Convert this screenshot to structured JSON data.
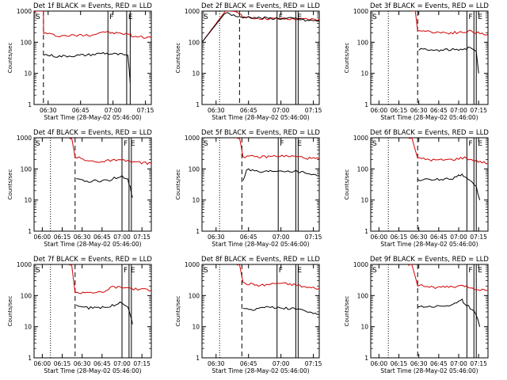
{
  "chart_data": [
    {
      "type": "line",
      "title": "Det 1f BLACK = Events, RED = LLD",
      "xlabel": "Start Time (28-May-02 05:46:00)",
      "ylabel": "Counts/sec",
      "xtick_labels": [
        "06:30",
        "06:45",
        "07:00",
        "07:15"
      ],
      "series": [
        {
          "color": "#d00000",
          "x": [
            0,
            0.045,
            0.08,
            0.081,
            0.2,
            0.35,
            0.5,
            0.59,
            0.65,
            0.75,
            0.82,
            0.83,
            0.9,
            1
          ],
          "y": [
            1000,
            1000,
            1000,
            200,
            160,
            165,
            175,
            220,
            200,
            190,
            180,
            160,
            150,
            140
          ]
        },
        {
          "color": "#000000",
          "x": [
            0.085,
            0.2,
            0.35,
            0.5,
            0.59,
            0.65,
            0.75,
            0.8,
            0.81,
            0.82
          ],
          "y": [
            40,
            35,
            37,
            40,
            45,
            42,
            40,
            35,
            15,
            5
          ]
        }
      ],
      "markers": [
        {
          "x": 0.08,
          "style": "dashed",
          "label": ""
        },
        {
          "x": -0.18,
          "style": "dotted",
          "label": ""
        },
        {
          "x": 0.63,
          "style": "solid",
          "label": "F"
        },
        {
          "x": 0.79,
          "style": "solid",
          "label": "E"
        },
        {
          "x": 0.82,
          "style": "solid",
          "label": ""
        }
      ]
    },
    {
      "type": "line",
      "title": "Det 2f BLACK = Events, RED = LLD",
      "xlabel": "Start Time (28-May-02 05:46:00)",
      "ylabel": "Counts/sec",
      "xtick_labels": [
        "06:30",
        "06:45",
        "07:00",
        "07:15"
      ],
      "series": [
        {
          "color": "#d00000",
          "x": [
            0,
            0.2,
            0.3,
            0.35,
            0.4,
            0.5,
            0.65,
            0.8,
            1
          ],
          "y": [
            100,
            1000,
            1000,
            650,
            600,
            580,
            560,
            550,
            540
          ]
        },
        {
          "color": "#000000",
          "x": [
            0,
            0.2,
            0.34,
            0.36,
            0.5,
            0.65,
            0.8,
            0.88,
            1
          ],
          "y": [
            100,
            900,
            600,
            650,
            600,
            580,
            570,
            500,
            480
          ]
        }
      ],
      "markers": [
        {
          "x": 0.32,
          "style": "dashed",
          "label": ""
        },
        {
          "x": 0.15,
          "style": "dotted",
          "label": ""
        },
        {
          "x": 0.64,
          "style": "solid",
          "label": "F"
        },
        {
          "x": 0.8,
          "style": "solid",
          "label": "E"
        },
        {
          "x": 0.82,
          "style": "solid",
          "label": ""
        }
      ]
    },
    {
      "type": "line",
      "title": "Det 3f BLACK = Events, RED = LLD",
      "xlabel": "Start Time (28-May-02 05:46:00)",
      "ylabel": "Counts/sec",
      "xtick_labels": [
        "06:00",
        "06:15",
        "06:30",
        "06:45",
        "07:00",
        "07:15"
      ],
      "series": [
        {
          "color": "#d00000",
          "x": [
            0.35,
            0.38,
            0.4,
            0.5,
            0.65,
            0.8,
            0.84,
            0.9,
            1
          ],
          "y": [
            1000,
            1000,
            250,
            220,
            200,
            210,
            230,
            200,
            180
          ]
        },
        {
          "color": "#000000",
          "x": [
            0.41,
            0.5,
            0.6,
            0.7,
            0.8,
            0.85,
            0.9,
            0.92
          ],
          "y": [
            60,
            55,
            55,
            58,
            60,
            70,
            50,
            10
          ]
        }
      ],
      "markers": [
        {
          "x": 0.4,
          "style": "dashed",
          "label": ""
        },
        {
          "x": 0.15,
          "style": "dotted",
          "label": ""
        },
        {
          "x": 0.82,
          "style": "solid",
          "label": "F"
        },
        {
          "x": 0.88,
          "style": "solid",
          "label": ""
        },
        {
          "x": 0.9,
          "style": "solid",
          "label": "E"
        }
      ]
    },
    {
      "type": "line",
      "title": "Det 4f BLACK = Events, RED = LLD",
      "xlabel": "Start Time (28-May-02 05:46:00)",
      "ylabel": "Counts/sec",
      "xtick_labels": [
        "06:00",
        "06:15",
        "06:30",
        "06:45",
        "07:00",
        "07:15"
      ],
      "series": [
        {
          "color": "#d00000",
          "x": [
            0.3,
            0.32,
            0.35,
            0.45,
            0.6,
            0.65,
            0.8,
            0.85,
            0.9,
            1
          ],
          "y": [
            1000,
            1000,
            250,
            180,
            170,
            190,
            180,
            165,
            160,
            150
          ]
        },
        {
          "color": "#000000",
          "x": [
            0.36,
            0.45,
            0.6,
            0.65,
            0.75,
            0.8,
            0.82,
            0.84
          ],
          "y": [
            45,
            40,
            42,
            45,
            60,
            45,
            25,
            12
          ]
        }
      ],
      "markers": [
        {
          "x": 0.35,
          "style": "dashed",
          "label": ""
        },
        {
          "x": 0.14,
          "style": "dotted",
          "label": ""
        },
        {
          "x": 0.75,
          "style": "solid",
          "label": "F"
        },
        {
          "x": 0.81,
          "style": "solid",
          "label": "E"
        },
        {
          "x": 0.83,
          "style": "solid",
          "label": ""
        }
      ]
    },
    {
      "type": "line",
      "title": "Det 5f BLACK = Events, RED = LLD",
      "xlabel": "Start Time (28-May-02 05:46:00)",
      "ylabel": "Counts/sec",
      "xtick_labels": [
        "06:30",
        "06:45",
        "07:00",
        "07:15"
      ],
      "series": [
        {
          "color": "#d00000",
          "x": [
            0.3,
            0.32,
            0.35,
            0.5,
            0.65,
            0.8,
            0.9,
            1
          ],
          "y": [
            1000,
            1000,
            250,
            240,
            260,
            250,
            220,
            210
          ]
        },
        {
          "color": "#000000",
          "x": [
            0.35,
            0.38,
            0.5,
            0.65,
            0.8,
            0.9,
            1
          ],
          "y": [
            40,
            100,
            80,
            90,
            85,
            75,
            60
          ]
        }
      ],
      "markers": [
        {
          "x": 0.34,
          "style": "dashed",
          "label": ""
        },
        {
          "x": 0.15,
          "style": "dotted",
          "label": ""
        },
        {
          "x": 0.65,
          "style": "solid",
          "label": "F"
        },
        {
          "x": 0.8,
          "style": "solid",
          "label": "E"
        },
        {
          "x": 0.82,
          "style": "solid",
          "label": ""
        }
      ]
    },
    {
      "type": "line",
      "title": "Det 6f BLACK = Events, RED = LLD",
      "xlabel": "Start Time (28-May-02 05:46:00)",
      "ylabel": "Counts/sec",
      "xtick_labels": [
        "06:00",
        "06:15",
        "06:30",
        "06:45",
        "07:00",
        "07:15"
      ],
      "series": [
        {
          "color": "#d00000",
          "x": [
            0.32,
            0.35,
            0.4,
            0.55,
            0.7,
            0.8,
            0.85,
            0.9,
            1
          ],
          "y": [
            1000,
            1000,
            220,
            190,
            200,
            230,
            200,
            180,
            150
          ]
        },
        {
          "color": "#000000",
          "x": [
            0.4,
            0.55,
            0.7,
            0.78,
            0.8,
            0.85,
            0.9,
            0.93
          ],
          "y": [
            45,
            45,
            50,
            70,
            55,
            40,
            25,
            10
          ]
        }
      ],
      "markers": [
        {
          "x": 0.4,
          "style": "dashed",
          "label": ""
        },
        {
          "x": 0.15,
          "style": "dotted",
          "label": ""
        },
        {
          "x": 0.82,
          "style": "solid",
          "label": "F"
        },
        {
          "x": 0.88,
          "style": "solid",
          "label": ""
        },
        {
          "x": 0.9,
          "style": "solid",
          "label": "E"
        }
      ]
    },
    {
      "type": "line",
      "title": "Det 7f BLACK = Events, RED = LLD",
      "xlabel": "Start Time (28-May-02 05:46:00)",
      "ylabel": "Counts/sec",
      "xtick_labels": [
        "06:00",
        "06:15",
        "06:30",
        "06:45",
        "07:00",
        "07:15"
      ],
      "series": [
        {
          "color": "#d00000",
          "x": [
            0.3,
            0.32,
            0.35,
            0.45,
            0.6,
            0.65,
            0.8,
            0.85,
            0.9,
            1
          ],
          "y": [
            1000,
            1000,
            120,
            130,
            125,
            190,
            180,
            165,
            160,
            150
          ]
        },
        {
          "color": "#000000",
          "x": [
            0.36,
            0.45,
            0.6,
            0.65,
            0.75,
            0.8,
            0.82,
            0.84
          ],
          "y": [
            50,
            40,
            42,
            45,
            60,
            45,
            25,
            12
          ]
        }
      ],
      "markers": [
        {
          "x": 0.35,
          "style": "dashed",
          "label": ""
        },
        {
          "x": 0.14,
          "style": "dotted",
          "label": ""
        },
        {
          "x": 0.75,
          "style": "solid",
          "label": "F"
        },
        {
          "x": 0.81,
          "style": "solid",
          "label": "E"
        },
        {
          "x": 0.83,
          "style": "solid",
          "label": ""
        }
      ]
    },
    {
      "type": "line",
      "title": "Det 8f BLACK = Events, RED = LLD",
      "xlabel": "Start Time (28-May-02 05:46:00)",
      "ylabel": "Counts/sec",
      "xtick_labels": [
        "06:30",
        "06:45",
        "07:00",
        "07:15"
      ],
      "series": [
        {
          "color": "#d00000",
          "x": [
            0.3,
            0.32,
            0.35,
            0.5,
            0.65,
            0.8,
            0.9,
            1
          ],
          "y": [
            1000,
            1000,
            250,
            210,
            250,
            220,
            180,
            170
          ]
        },
        {
          "color": "#000000",
          "x": [
            0.35,
            0.45,
            0.5,
            0.65,
            0.8,
            0.9,
            1
          ],
          "y": [
            40,
            35,
            45,
            40,
            38,
            30,
            25
          ]
        }
      ],
      "markers": [
        {
          "x": 0.34,
          "style": "dashed",
          "label": ""
        },
        {
          "x": 0.15,
          "style": "dotted",
          "label": ""
        },
        {
          "x": 0.64,
          "style": "solid",
          "label": "F"
        },
        {
          "x": 0.8,
          "style": "solid",
          "label": "E"
        },
        {
          "x": 0.82,
          "style": "solid",
          "label": ""
        }
      ]
    },
    {
      "type": "line",
      "title": "Det 9f BLACK = Events, RED = LLD",
      "xlabel": "Start Time (28-May-02 05:46:00)",
      "ylabel": "Counts/sec",
      "xtick_labels": [
        "06:00",
        "06:15",
        "06:30",
        "06:45",
        "07:00",
        "07:15"
      ],
      "series": [
        {
          "color": "#d00000",
          "x": [
            0.32,
            0.35,
            0.4,
            0.55,
            0.7,
            0.8,
            0.85,
            0.9,
            1
          ],
          "y": [
            1000,
            1000,
            220,
            180,
            190,
            200,
            180,
            160,
            150
          ]
        },
        {
          "color": "#000000",
          "x": [
            0.4,
            0.55,
            0.7,
            0.78,
            0.8,
            0.85,
            0.9,
            0.93
          ],
          "y": [
            45,
            45,
            50,
            70,
            55,
            40,
            25,
            10
          ]
        }
      ],
      "markers": [
        {
          "x": 0.4,
          "style": "dashed",
          "label": ""
        },
        {
          "x": 0.15,
          "style": "dotted",
          "label": ""
        },
        {
          "x": 0.82,
          "style": "solid",
          "label": "F"
        },
        {
          "x": 0.88,
          "style": "solid",
          "label": ""
        },
        {
          "x": 0.9,
          "style": "solid",
          "label": "E"
        }
      ]
    }
  ],
  "ytick_labels": [
    "1",
    "10",
    "100",
    "1000"
  ],
  "start_label": "S"
}
